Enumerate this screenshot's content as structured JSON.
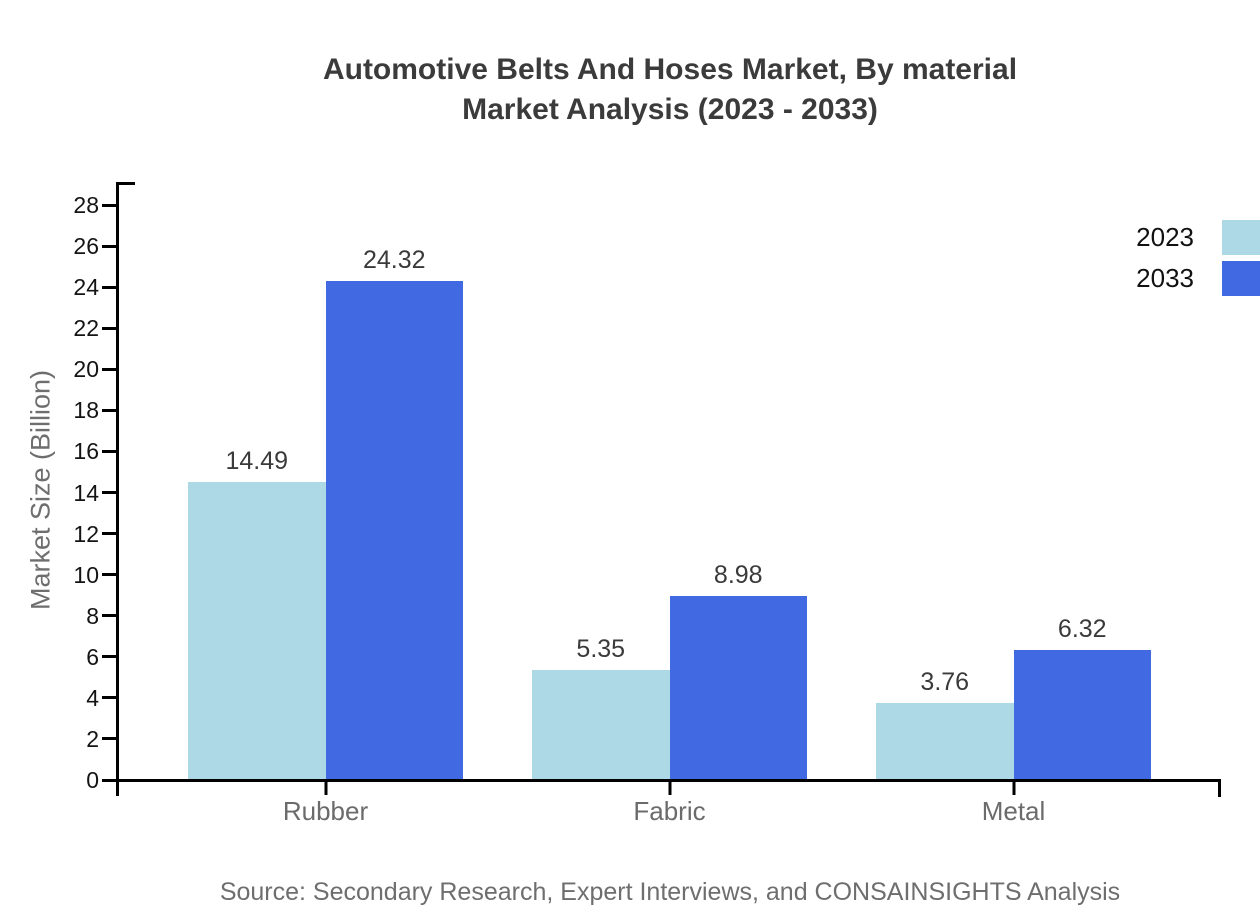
{
  "title": {
    "line1": "Automotive Belts And Hoses Market, By material",
    "line2": "Market Analysis (2023 - 2033)"
  },
  "source": "Source: Secondary Research, Expert Interviews, and CONSAINSIGHTS Analysis",
  "colors": {
    "series_2023": "#ADD8E6",
    "series_2033": "#4169E1",
    "axis_line": "#000000",
    "title_text": "#3b3b3b",
    "axis_text": "#6e6e6e",
    "tick_text": "#141414",
    "value_label_text": "#3a3a3a"
  },
  "chart_data": {
    "type": "bar",
    "categories": [
      "Rubber",
      "Fabric",
      "Metal"
    ],
    "series": [
      {
        "name": "2023",
        "color": "#ADD8E6",
        "values": [
          14.49,
          5.35,
          3.76
        ]
      },
      {
        "name": "2033",
        "color": "#4169E1",
        "values": [
          24.32,
          8.98,
          6.32
        ]
      }
    ],
    "title": "Automotive Belts And Hoses Market, By material Market Analysis (2023 - 2033)",
    "xlabel": "",
    "ylabel": "Market Size (Billion)",
    "ylim": [
      0,
      28
    ],
    "ytick_step": 2,
    "grid": false,
    "legend_position": "top-right",
    "value_labels_decimals": 2
  }
}
